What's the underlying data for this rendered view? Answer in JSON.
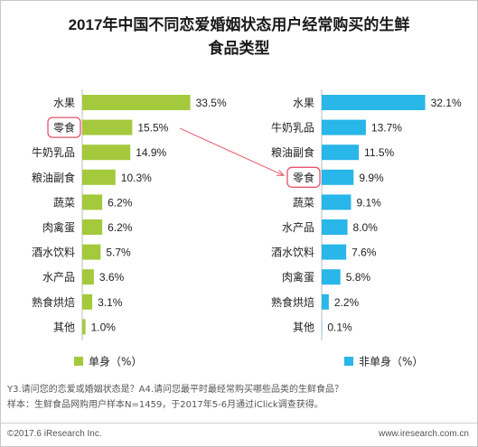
{
  "title_line1": "2017年中国不同恋爱婚姻状态用户经常购买的生鲜",
  "title_line2": "食品类型",
  "colors": {
    "single": "#a4c93c",
    "nonsingle": "#29b6e8",
    "highlight": "#e8566a",
    "text": "#222222"
  },
  "chart_data": [
    {
      "type": "bar",
      "orientation": "horizontal",
      "series_name": "单身（%）",
      "categories": [
        "水果",
        "零食",
        "牛奶乳品",
        "粮油副食",
        "蔬菜",
        "肉禽蛋",
        "酒水饮料",
        "水产品",
        "熟食烘焙",
        "其他"
      ],
      "values": [
        33.5,
        15.5,
        14.9,
        10.3,
        6.2,
        6.2,
        5.7,
        3.6,
        3.1,
        1.0
      ],
      "value_labels": [
        "33.5%",
        "15.5%",
        "14.9%",
        "10.3%",
        "6.2%",
        "6.2%",
        "5.7%",
        "3.6%",
        "3.1%",
        "1.0%"
      ],
      "highlighted": "零食",
      "legend_position": "bottom"
    },
    {
      "type": "bar",
      "orientation": "horizontal",
      "series_name": "非单身（%）",
      "categories": [
        "水果",
        "牛奶乳品",
        "粮油副食",
        "零食",
        "蔬菜",
        "水产品",
        "酒水饮料",
        "肉禽蛋",
        "熟食烘焙",
        "其他"
      ],
      "values": [
        32.1,
        13.7,
        11.5,
        9.9,
        9.1,
        8.0,
        7.6,
        5.8,
        2.2,
        0.1
      ],
      "value_labels": [
        "32.1%",
        "13.7%",
        "11.5%",
        "9.9%",
        "9.1%",
        "8.0%",
        "7.6%",
        "5.8%",
        "2.2%",
        "0.1%"
      ],
      "highlighted": "零食",
      "legend_position": "bottom"
    }
  ],
  "notes": [
    "Y3.请问您的恋爱或婚姻状态是？A4.请问您最平时最经常购买哪些品类的生鲜食品？",
    "样本：生鲜食品网购用户样本N=1459，于2017年5-6月通过iClick调查获得。"
  ],
  "footer": {
    "copyright": "©2017.6 iResearch Inc.",
    "website": "www.iresearch.com.cn"
  }
}
